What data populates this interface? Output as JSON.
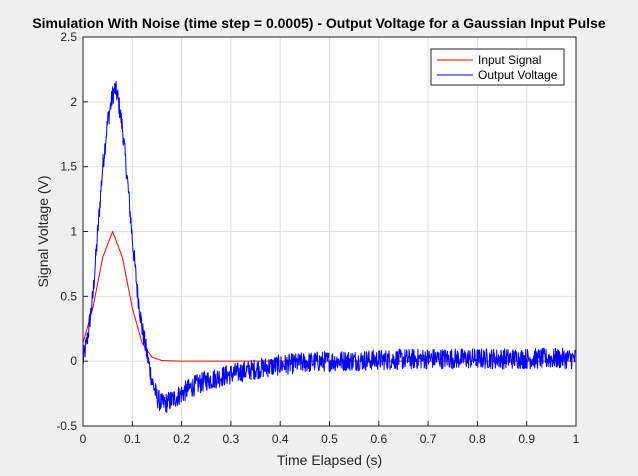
{
  "chart_data": {
    "type": "line",
    "title": "Simulation With Noise (time step = 0.0005) - Output Voltage for a Gaussian Input Pulse",
    "xlabel": "Time Elapsed (s)",
    "ylabel": "Signal Voltage (V)",
    "xlim": [
      0,
      1
    ],
    "ylim": [
      -0.5,
      2.5
    ],
    "xticks": [
      0,
      0.1,
      0.2,
      0.3,
      0.4,
      0.5,
      0.6,
      0.7,
      0.8,
      0.9,
      1
    ],
    "yticks": [
      -0.5,
      0,
      0.5,
      1,
      1.5,
      2,
      2.5
    ],
    "xtick_labels": [
      "0",
      "0.1",
      "0.2",
      "0.3",
      "0.4",
      "0.5",
      "0.6",
      "0.7",
      "0.8",
      "0.9",
      "1"
    ],
    "ytick_labels": [
      "-0.5",
      "0",
      "0.5",
      "1",
      "1.5",
      "2",
      "2.5"
    ],
    "grid": true,
    "legend_position": "top-right",
    "series": [
      {
        "name": "Input Signal",
        "color": "#ff0000",
        "x": [
          0,
          0.02,
          0.04,
          0.06,
          0.08,
          0.1,
          0.12,
          0.14,
          0.16,
          0.2,
          0.3,
          0.5,
          1.0
        ],
        "y": [
          0.14,
          0.41,
          0.8,
          1.0,
          0.8,
          0.41,
          0.14,
          0.03,
          0.005,
          0.0,
          0.0,
          0.0,
          0.0
        ]
      },
      {
        "name": "Output Voltage",
        "color": "#0000ff",
        "x": [
          0,
          0.01,
          0.02,
          0.03,
          0.04,
          0.05,
          0.06,
          0.065,
          0.07,
          0.08,
          0.09,
          0.1,
          0.11,
          0.12,
          0.13,
          0.14,
          0.15,
          0.16,
          0.17,
          0.18,
          0.2,
          0.22,
          0.25,
          0.3,
          0.35,
          0.4,
          0.45,
          0.5,
          0.6,
          0.7,
          0.8,
          0.9,
          1.0
        ],
        "y": [
          0.0,
          0.2,
          0.5,
          1.0,
          1.5,
          1.85,
          2.05,
          2.1,
          2.05,
          1.8,
          1.4,
          0.95,
          0.55,
          0.25,
          0.05,
          -0.15,
          -0.28,
          -0.33,
          -0.32,
          -0.3,
          -0.25,
          -0.2,
          -0.15,
          -0.1,
          -0.06,
          -0.03,
          -0.01,
          0.0,
          0.01,
          0.02,
          0.02,
          0.02,
          0.02
        ],
        "noise_amplitude": 0.08
      }
    ]
  }
}
